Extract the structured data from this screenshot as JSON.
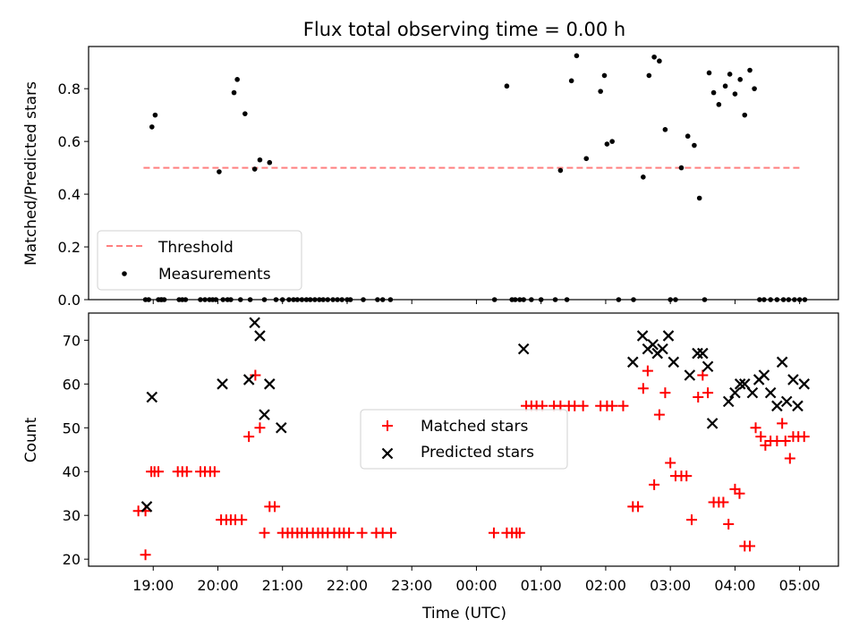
{
  "chart_data": [
    {
      "type": "scatter",
      "title": "Flux total observing time = 0.00 h",
      "ylabel": "Matched/Predicted stars",
      "xlabel": "",
      "ylim": [
        0,
        0.96
      ],
      "yticks": [
        "0.0",
        "0.2",
        "0.4",
        "0.6",
        "0.8"
      ],
      "ytick_values": [
        0,
        0.2,
        0.4,
        0.6,
        0.8
      ],
      "grid": false,
      "legend_placement": "lower-left",
      "threshold": {
        "name": "Threshold",
        "value": 0.5,
        "x_range": [
          18.85,
          29.0
        ],
        "color": "#ff7f7f"
      },
      "series": [
        {
          "name": "Measurements",
          "color": "#000000",
          "x": [
            18.88,
            18.93,
            18.98,
            19.03,
            19.08,
            19.12,
            19.13,
            19.17,
            19.4,
            19.45,
            19.5,
            19.73,
            19.8,
            19.87,
            19.92,
            19.97,
            20.02,
            20.08,
            20.15,
            20.2,
            20.25,
            20.3,
            20.35,
            20.42,
            20.5,
            20.57,
            20.65,
            20.72,
            20.8,
            20.9,
            21.0,
            21.1,
            21.17,
            21.23,
            21.3,
            21.37,
            21.43,
            21.5,
            21.57,
            21.63,
            21.7,
            21.78,
            21.85,
            21.92,
            22.0,
            22.05,
            22.25,
            22.47,
            22.55,
            22.67,
            24.28,
            24.47,
            24.55,
            24.6,
            24.67,
            24.73,
            24.85,
            25.0,
            25.22,
            25.3,
            25.4,
            25.47,
            25.55,
            25.7,
            25.92,
            25.98,
            26.02,
            26.1,
            26.2,
            26.43,
            26.58,
            26.67,
            26.75,
            26.83,
            26.92,
            27.0,
            27.08,
            27.17,
            27.27,
            27.37,
            27.45,
            27.53,
            27.6,
            27.67,
            27.75,
            27.85,
            27.92,
            28.0,
            28.08,
            28.15,
            28.23,
            28.3,
            28.38,
            28.45,
            28.55,
            28.65,
            28.75,
            28.83,
            28.92,
            29.0,
            29.08
          ],
          "y": [
            0,
            0,
            0.655,
            0.7,
            0,
            0,
            0,
            0,
            0,
            0,
            0,
            0,
            0,
            0,
            0,
            0,
            0.485,
            0,
            0,
            0,
            0.785,
            0.835,
            0,
            0.705,
            0,
            0.495,
            0.53,
            0,
            0.52,
            0,
            0,
            0,
            0,
            0,
            0,
            0,
            0,
            0,
            0,
            0,
            0,
            0,
            0,
            0,
            0,
            0,
            0,
            0,
            0,
            0,
            0,
            0.81,
            0,
            0,
            0,
            0,
            0,
            0,
            0,
            0.49,
            0,
            0.83,
            0.925,
            0.535,
            0.79,
            0.85,
            0.59,
            0.6,
            0,
            0,
            0.465,
            0.85,
            0.92,
            0.905,
            0.645,
            0,
            0,
            0.5,
            0.62,
            0.585,
            0.385,
            0,
            0.86,
            0.785,
            0.74,
            0.81,
            0.855,
            0.78,
            0.835,
            0.7,
            0.87,
            0.8,
            0,
            0,
            0,
            0,
            0,
            0,
            0,
            0,
            0
          ]
        }
      ]
    },
    {
      "type": "scatter",
      "title": "",
      "xlabel": "Time (UTC)",
      "ylabel": "Count",
      "ylim": [
        18.4,
        76.2
      ],
      "yticks": [
        "20",
        "30",
        "40",
        "50",
        "60",
        "70"
      ],
      "ytick_values": [
        20,
        30,
        40,
        50,
        60,
        70
      ],
      "xlim": [
        18.0,
        29.6
      ],
      "xticks": [
        "19:00",
        "20:00",
        "21:00",
        "22:00",
        "23:00",
        "00:00",
        "01:00",
        "02:00",
        "03:00",
        "04:00",
        "05:00"
      ],
      "xtick_values": [
        19,
        20,
        21,
        22,
        23,
        24,
        25,
        26,
        27,
        28,
        29
      ],
      "grid": false,
      "legend_placement": "center",
      "series": [
        {
          "name": "Matched stars",
          "color": "#ff0000",
          "marker": "plus",
          "x": [
            18.77,
            18.88,
            18.88,
            18.97,
            19.02,
            19.08,
            19.38,
            19.45,
            19.52,
            19.73,
            19.8,
            19.88,
            19.95,
            20.05,
            20.13,
            20.2,
            20.27,
            20.37,
            20.48,
            20.58,
            20.65,
            20.72,
            20.8,
            20.88,
            21.0,
            21.08,
            21.15,
            21.23,
            21.3,
            21.38,
            21.47,
            21.55,
            21.62,
            21.7,
            21.8,
            21.88,
            21.95,
            22.03,
            22.23,
            22.45,
            22.55,
            22.68,
            24.27,
            24.47,
            24.55,
            24.62,
            24.67,
            24.77,
            24.85,
            24.93,
            25.02,
            25.2,
            25.3,
            25.43,
            25.52,
            25.65,
            25.92,
            26.02,
            26.1,
            26.27,
            26.42,
            26.5,
            26.58,
            26.65,
            26.75,
            26.83,
            26.92,
            27.0,
            27.08,
            27.17,
            27.25,
            27.33,
            27.43,
            27.5,
            27.58,
            27.67,
            27.75,
            27.82,
            27.9,
            28.0,
            28.07,
            28.15,
            28.23,
            28.32,
            28.4,
            28.47,
            28.55,
            28.65,
            28.73,
            28.78,
            28.85,
            28.9,
            28.98,
            29.07
          ],
          "y": [
            31,
            31,
            21,
            40,
            40,
            40,
            40,
            40,
            40,
            40,
            40,
            40,
            40,
            29,
            29,
            29,
            29,
            29,
            48,
            62,
            50,
            26,
            32,
            32,
            26,
            26,
            26,
            26,
            26,
            26,
            26,
            26,
            26,
            26,
            26,
            26,
            26,
            26,
            26,
            26,
            26,
            26,
            26,
            26,
            26,
            26,
            26,
            55,
            55,
            55,
            55,
            55,
            55,
            55,
            55,
            55,
            55,
            55,
            55,
            55,
            32,
            32,
            59,
            63,
            37,
            53,
            58,
            42,
            39,
            39,
            39,
            29,
            57,
            62,
            58,
            33,
            33,
            33,
            28,
            36,
            35,
            23,
            23,
            50,
            48,
            46,
            47,
            47,
            51,
            47,
            43,
            48,
            48,
            48
          ]
        },
        {
          "name": "Predicted stars",
          "color": "#000000",
          "marker": "x",
          "x": [
            18.9,
            18.98,
            20.07,
            20.48,
            20.57,
            20.65,
            20.72,
            20.8,
            20.98,
            24.73,
            26.42,
            26.57,
            26.65,
            26.73,
            26.8,
            26.88,
            26.97,
            27.05,
            27.3,
            27.42,
            27.5,
            27.58,
            27.65,
            27.9,
            28.0,
            28.08,
            28.15,
            28.27,
            28.37,
            28.45,
            28.55,
            28.65,
            28.73,
            28.8,
            28.9,
            28.97,
            29.07
          ],
          "y": [
            32,
            57,
            60,
            61,
            74,
            71,
            53,
            60,
            50,
            68,
            65,
            71,
            68,
            69,
            67,
            68,
            71,
            65,
            62,
            67,
            67,
            64,
            51,
            56,
            58,
            60,
            60,
            58,
            61,
            62,
            58,
            55,
            65,
            56,
            61,
            55,
            60
          ]
        }
      ]
    }
  ]
}
